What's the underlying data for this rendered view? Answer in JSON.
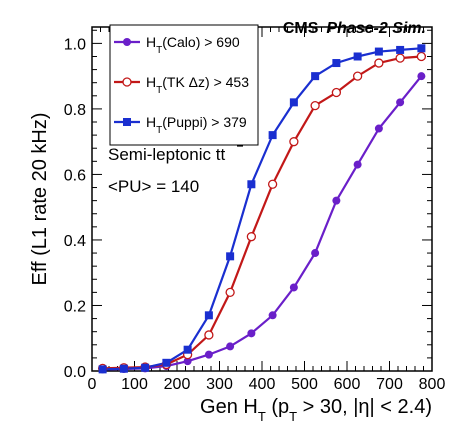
{
  "chart_data": {
    "type": "line",
    "header_bold": "CMS",
    "header_italic": "Phase-2 Sim.",
    "ylabel": "Eff (L1 rate 20 kHz)",
    "xlim": [
      0,
      800
    ],
    "ylim": [
      0,
      1.05
    ],
    "x_ticks": [
      0,
      100,
      200,
      300,
      400,
      500,
      600,
      700,
      800
    ],
    "y_ticks": [
      "0.0",
      "0.2",
      "0.4",
      "0.6",
      "0.8",
      "1.0"
    ],
    "annotations": [
      "Semi-leptonic",
      "<PU> = 140"
    ],
    "x": [
      25,
      75,
      125,
      175,
      225,
      275,
      325,
      375,
      425,
      475,
      525,
      575,
      625,
      675,
      725,
      775
    ],
    "series": [
      {
        "name": "(Calo) > 690",
        "color": "#6a1fc9",
        "marker": "circle-filled",
        "values": [
          0.005,
          0.006,
          0.008,
          0.015,
          0.03,
          0.05,
          0.075,
          0.115,
          0.17,
          0.255,
          0.36,
          0.52,
          0.63,
          0.74,
          0.82,
          0.9
        ]
      },
      {
        "name": "(TK Δz) > 453",
        "color": "#c21818",
        "marker": "circle-open",
        "values": [
          0.008,
          0.01,
          0.012,
          0.02,
          0.05,
          0.11,
          0.24,
          0.41,
          0.57,
          0.7,
          0.81,
          0.85,
          0.9,
          0.94,
          0.955,
          0.96
        ]
      },
      {
        "name": "(Puppi) > 379",
        "color": "#1a2fd0",
        "marker": "square-filled",
        "values": [
          0.005,
          0.007,
          0.01,
          0.025,
          0.065,
          0.17,
          0.35,
          0.57,
          0.72,
          0.82,
          0.9,
          0.94,
          0.96,
          0.975,
          0.98,
          0.985
        ]
      }
    ]
  }
}
